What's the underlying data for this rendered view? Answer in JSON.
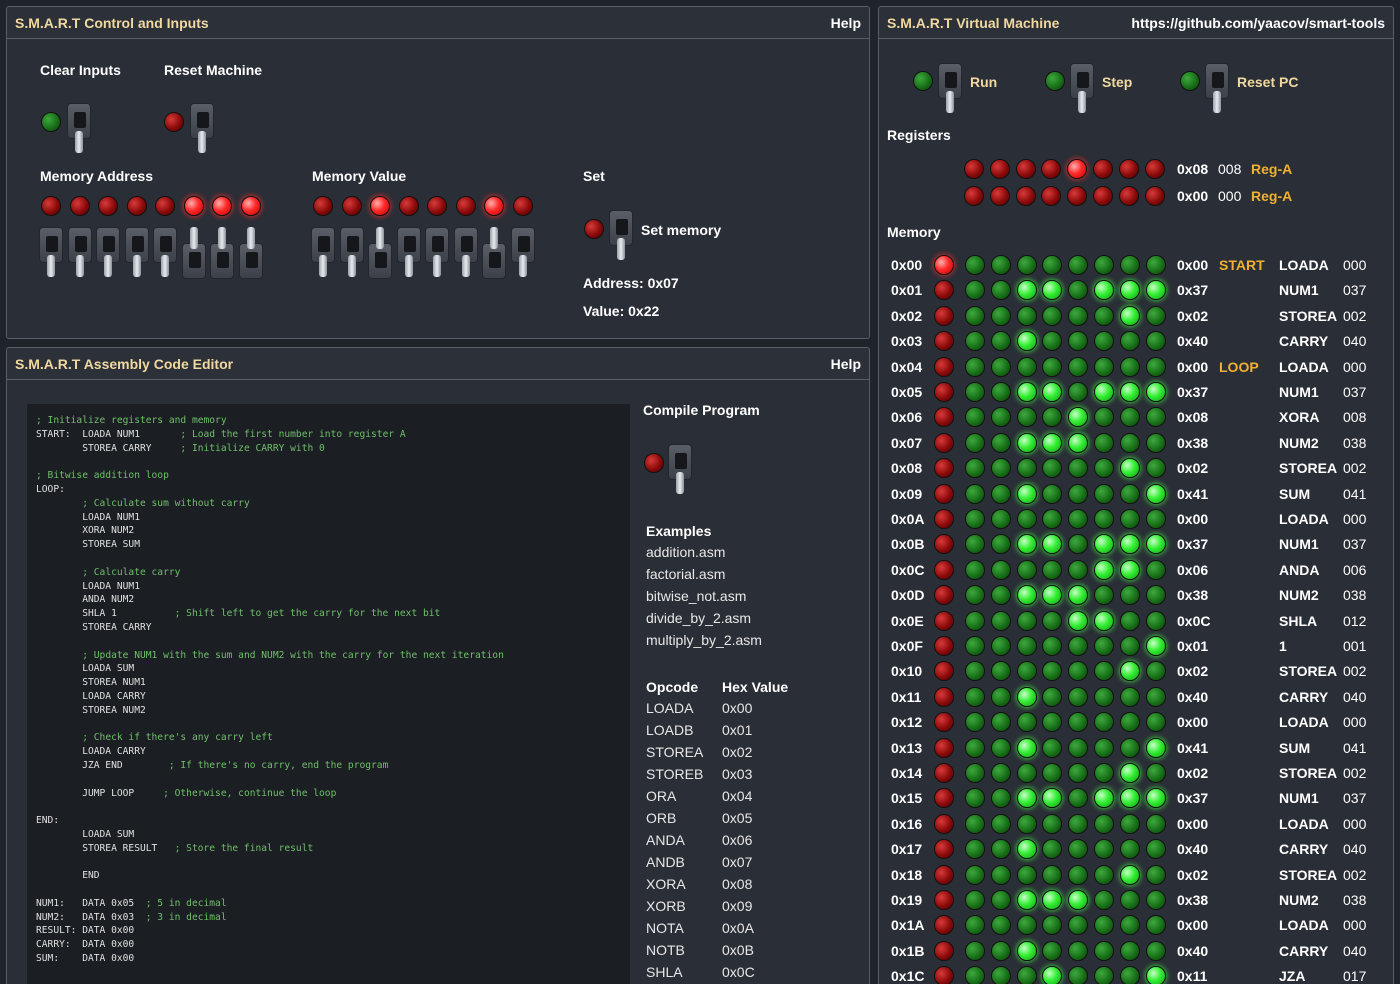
{
  "control": {
    "title": "S.M.A.R.T Control and Inputs",
    "help": "Help",
    "clear_inputs": "Clear Inputs",
    "reset_machine": "Reset Machine",
    "memory_address": "Memory Address",
    "memory_value": "Memory Value",
    "set": "Set",
    "set_memory": "Set memory",
    "address_text": "Address: 0x07",
    "value_text": "Value: 0x22",
    "address_bits": [
      0,
      0,
      0,
      0,
      0,
      1,
      1,
      1
    ],
    "value_bits": [
      0,
      0,
      1,
      0,
      0,
      0,
      1,
      0
    ],
    "colors": {
      "led_red": "#8a0a0a",
      "led_red_on": "#ff2a2a",
      "led_green": "#187018",
      "led_green_on": "#33ee33",
      "label_gold": "#f0b030"
    }
  },
  "editor": {
    "title": "S.M.A.R.T Assembly Code Editor",
    "help": "Help",
    "code_lines": [
      [
        "",
        "; Initialize registers and memory"
      ],
      [
        "START:  LOADA NUM1       ",
        "; Load the first number into register A"
      ],
      [
        "        STOREA CARRY     ",
        "; Initialize CARRY with 0"
      ],
      [
        "",
        ""
      ],
      [
        "",
        "; Bitwise addition loop"
      ],
      [
        "LOOP:",
        ""
      ],
      [
        "        ",
        "; Calculate sum without carry"
      ],
      [
        "        LOADA NUM1",
        ""
      ],
      [
        "        XORA NUM2",
        ""
      ],
      [
        "        STOREA SUM",
        ""
      ],
      [
        "",
        ""
      ],
      [
        "        ",
        "; Calculate carry"
      ],
      [
        "        LOADA NUM1",
        ""
      ],
      [
        "        ANDA NUM2",
        ""
      ],
      [
        "        SHLA 1          ",
        "; Shift left to get the carry for the next bit"
      ],
      [
        "        STOREA CARRY",
        ""
      ],
      [
        "",
        ""
      ],
      [
        "        ",
        "; Update NUM1 with the sum and NUM2 with the carry for the next iteration"
      ],
      [
        "        LOADA SUM",
        ""
      ],
      [
        "        STOREA NUM1",
        ""
      ],
      [
        "        LOADA CARRY",
        ""
      ],
      [
        "        STOREA NUM2",
        ""
      ],
      [
        "",
        ""
      ],
      [
        "        ",
        "; Check if there's any carry left"
      ],
      [
        "        LOADA CARRY",
        ""
      ],
      [
        "        JZA END        ",
        "; If there's no carry, end the program"
      ],
      [
        "",
        ""
      ],
      [
        "        JUMP LOOP     ",
        "; Otherwise, continue the loop"
      ],
      [
        "",
        ""
      ],
      [
        "END:",
        ""
      ],
      [
        "        LOADA SUM",
        ""
      ],
      [
        "        STOREA RESULT   ",
        "; Store the final result"
      ],
      [
        "",
        ""
      ],
      [
        "        END",
        ""
      ],
      [
        "",
        ""
      ],
      [
        "NUM1:   DATA 0x05  ",
        "; 5 in decimal"
      ],
      [
        "NUM2:   DATA 0x03  ",
        "; 3 in decimal"
      ],
      [
        "RESULT: DATA 0x00",
        ""
      ],
      [
        "CARRY:  DATA 0x00",
        ""
      ],
      [
        "SUM:    DATA 0x00",
        ""
      ]
    ],
    "compile": "Compile Program",
    "examples_title": "Examples",
    "examples": [
      "addition.asm",
      "factorial.asm",
      "bitwise_not.asm",
      "divide_by_2.asm",
      "multiply_by_2.asm"
    ],
    "opcode_header": "Opcode",
    "hex_header": "Hex Value",
    "opcodes": [
      [
        "LOADA",
        "0x00"
      ],
      [
        "LOADB",
        "0x01"
      ],
      [
        "STOREA",
        "0x02"
      ],
      [
        "STOREB",
        "0x03"
      ],
      [
        "ORA",
        "0x04"
      ],
      [
        "ORB",
        "0x05"
      ],
      [
        "ANDA",
        "0x06"
      ],
      [
        "ANDB",
        "0x07"
      ],
      [
        "XORA",
        "0x08"
      ],
      [
        "XORB",
        "0x09"
      ],
      [
        "NOTA",
        "0x0A"
      ],
      [
        "NOTB",
        "0x0B"
      ],
      [
        "SHLA",
        "0x0C"
      ]
    ]
  },
  "vm": {
    "title": "S.M.A.R.T Virtual Machine",
    "link": "https://github.com/yaacov/smart-tools",
    "run": "Run",
    "step": "Step",
    "reset_pc": "Reset PC",
    "registers_title": "Registers",
    "registers": [
      {
        "bits": [
          0,
          0,
          0,
          0,
          1,
          0,
          0,
          0
        ],
        "hex": "0x08",
        "dec": "008",
        "name": "Reg-A"
      },
      {
        "bits": [
          0,
          0,
          0,
          0,
          0,
          0,
          0,
          0
        ],
        "hex": "0x00",
        "dec": "000",
        "name": "Reg-A"
      }
    ],
    "memory_title": "Memory",
    "memory": [
      {
        "addr": "0x00",
        "pc": 1,
        "bits": [
          0,
          0,
          0,
          0,
          0,
          0,
          0,
          0
        ],
        "hex": "0x00",
        "label": "START",
        "instr": "LOADA",
        "dec": "000"
      },
      {
        "addr": "0x01",
        "pc": 0,
        "bits": [
          0,
          0,
          1,
          1,
          0,
          1,
          1,
          1
        ],
        "hex": "0x37",
        "label": "",
        "instr": "NUM1",
        "dec": "037"
      },
      {
        "addr": "0x02",
        "pc": 0,
        "bits": [
          0,
          0,
          0,
          0,
          0,
          0,
          1,
          0
        ],
        "hex": "0x02",
        "label": "",
        "instr": "STOREA",
        "dec": "002"
      },
      {
        "addr": "0x03",
        "pc": 0,
        "bits": [
          0,
          0,
          1,
          0,
          0,
          0,
          0,
          0
        ],
        "hex": "0x40",
        "label": "",
        "instr": "CARRY",
        "dec": "040"
      },
      {
        "addr": "0x04",
        "pc": 0,
        "bits": [
          0,
          0,
          0,
          0,
          0,
          0,
          0,
          0
        ],
        "hex": "0x00",
        "label": "LOOP",
        "instr": "LOADA",
        "dec": "000"
      },
      {
        "addr": "0x05",
        "pc": 0,
        "bits": [
          0,
          0,
          1,
          1,
          0,
          1,
          1,
          1
        ],
        "hex": "0x37",
        "label": "",
        "instr": "NUM1",
        "dec": "037"
      },
      {
        "addr": "0x06",
        "pc": 0,
        "bits": [
          0,
          0,
          0,
          0,
          1,
          0,
          0,
          0
        ],
        "hex": "0x08",
        "label": "",
        "instr": "XORA",
        "dec": "008"
      },
      {
        "addr": "0x07",
        "pc": 0,
        "bits": [
          0,
          0,
          1,
          1,
          1,
          0,
          0,
          0
        ],
        "hex": "0x38",
        "label": "",
        "instr": "NUM2",
        "dec": "038"
      },
      {
        "addr": "0x08",
        "pc": 0,
        "bits": [
          0,
          0,
          0,
          0,
          0,
          0,
          1,
          0
        ],
        "hex": "0x02",
        "label": "",
        "instr": "STOREA",
        "dec": "002"
      },
      {
        "addr": "0x09",
        "pc": 0,
        "bits": [
          0,
          0,
          1,
          0,
          0,
          0,
          0,
          1
        ],
        "hex": "0x41",
        "label": "",
        "instr": "SUM",
        "dec": "041"
      },
      {
        "addr": "0x0A",
        "pc": 0,
        "bits": [
          0,
          0,
          0,
          0,
          0,
          0,
          0,
          0
        ],
        "hex": "0x00",
        "label": "",
        "instr": "LOADA",
        "dec": "000"
      },
      {
        "addr": "0x0B",
        "pc": 0,
        "bits": [
          0,
          0,
          1,
          1,
          0,
          1,
          1,
          1
        ],
        "hex": "0x37",
        "label": "",
        "instr": "NUM1",
        "dec": "037"
      },
      {
        "addr": "0x0C",
        "pc": 0,
        "bits": [
          0,
          0,
          0,
          0,
          0,
          1,
          1,
          0
        ],
        "hex": "0x06",
        "label": "",
        "instr": "ANDA",
        "dec": "006"
      },
      {
        "addr": "0x0D",
        "pc": 0,
        "bits": [
          0,
          0,
          1,
          1,
          1,
          0,
          0,
          0
        ],
        "hex": "0x38",
        "label": "",
        "instr": "NUM2",
        "dec": "038"
      },
      {
        "addr": "0x0E",
        "pc": 0,
        "bits": [
          0,
          0,
          0,
          0,
          1,
          1,
          0,
          0
        ],
        "hex": "0x0C",
        "label": "",
        "instr": "SHLA",
        "dec": "012"
      },
      {
        "addr": "0x0F",
        "pc": 0,
        "bits": [
          0,
          0,
          0,
          0,
          0,
          0,
          0,
          1
        ],
        "hex": "0x01",
        "label": "",
        "instr": "1",
        "dec": "001"
      },
      {
        "addr": "0x10",
        "pc": 0,
        "bits": [
          0,
          0,
          0,
          0,
          0,
          0,
          1,
          0
        ],
        "hex": "0x02",
        "label": "",
        "instr": "STOREA",
        "dec": "002"
      },
      {
        "addr": "0x11",
        "pc": 0,
        "bits": [
          0,
          0,
          1,
          0,
          0,
          0,
          0,
          0
        ],
        "hex": "0x40",
        "label": "",
        "instr": "CARRY",
        "dec": "040"
      },
      {
        "addr": "0x12",
        "pc": 0,
        "bits": [
          0,
          0,
          0,
          0,
          0,
          0,
          0,
          0
        ],
        "hex": "0x00",
        "label": "",
        "instr": "LOADA",
        "dec": "000"
      },
      {
        "addr": "0x13",
        "pc": 0,
        "bits": [
          0,
          0,
          1,
          0,
          0,
          0,
          0,
          1
        ],
        "hex": "0x41",
        "label": "",
        "instr": "SUM",
        "dec": "041"
      },
      {
        "addr": "0x14",
        "pc": 0,
        "bits": [
          0,
          0,
          0,
          0,
          0,
          0,
          1,
          0
        ],
        "hex": "0x02",
        "label": "",
        "instr": "STOREA",
        "dec": "002"
      },
      {
        "addr": "0x15",
        "pc": 0,
        "bits": [
          0,
          0,
          1,
          1,
          0,
          1,
          1,
          1
        ],
        "hex": "0x37",
        "label": "",
        "instr": "NUM1",
        "dec": "037"
      },
      {
        "addr": "0x16",
        "pc": 0,
        "bits": [
          0,
          0,
          0,
          0,
          0,
          0,
          0,
          0
        ],
        "hex": "0x00",
        "label": "",
        "instr": "LOADA",
        "dec": "000"
      },
      {
        "addr": "0x17",
        "pc": 0,
        "bits": [
          0,
          0,
          1,
          0,
          0,
          0,
          0,
          0
        ],
        "hex": "0x40",
        "label": "",
        "instr": "CARRY",
        "dec": "040"
      },
      {
        "addr": "0x18",
        "pc": 0,
        "bits": [
          0,
          0,
          0,
          0,
          0,
          0,
          1,
          0
        ],
        "hex": "0x02",
        "label": "",
        "instr": "STOREA",
        "dec": "002"
      },
      {
        "addr": "0x19",
        "pc": 0,
        "bits": [
          0,
          0,
          1,
          1,
          1,
          0,
          0,
          0
        ],
        "hex": "0x38",
        "label": "",
        "instr": "NUM2",
        "dec": "038"
      },
      {
        "addr": "0x1A",
        "pc": 0,
        "bits": [
          0,
          0,
          0,
          0,
          0,
          0,
          0,
          0
        ],
        "hex": "0x00",
        "label": "",
        "instr": "LOADA",
        "dec": "000"
      },
      {
        "addr": "0x1B",
        "pc": 0,
        "bits": [
          0,
          0,
          1,
          0,
          0,
          0,
          0,
          0
        ],
        "hex": "0x40",
        "label": "",
        "instr": "CARRY",
        "dec": "040"
      },
      {
        "addr": "0x1C",
        "pc": 0,
        "bits": [
          0,
          0,
          0,
          1,
          0,
          0,
          0,
          1
        ],
        "hex": "0x11",
        "label": "",
        "instr": "JZA",
        "dec": "017"
      }
    ]
  }
}
